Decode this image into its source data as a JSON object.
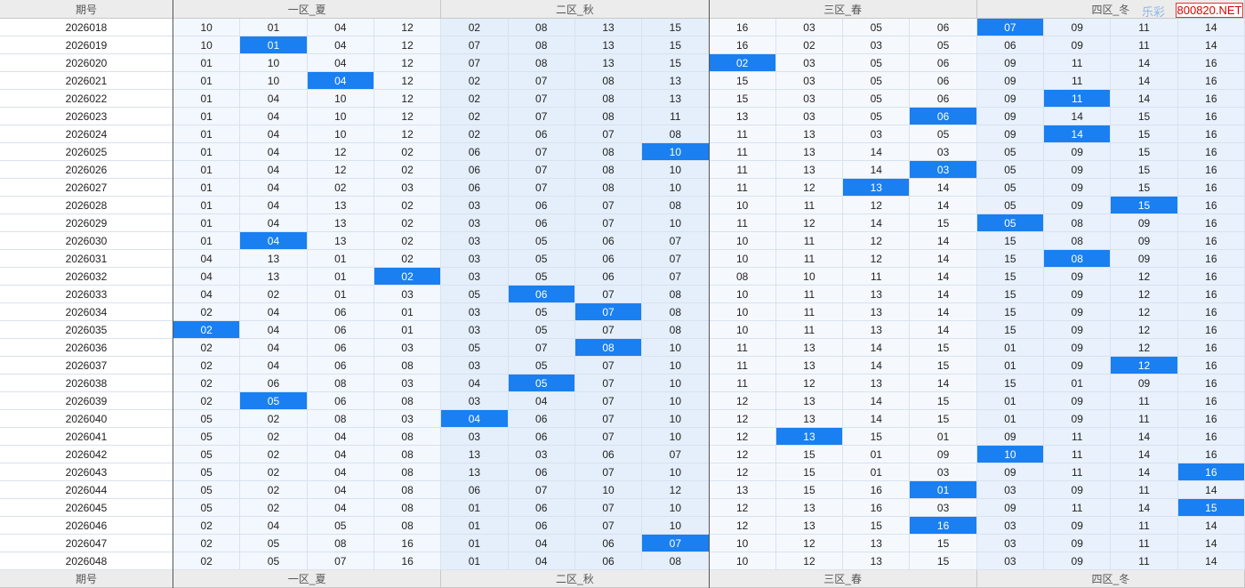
{
  "header": [
    "期号",
    "一区_夏",
    "二区_秋",
    "三区_春",
    "四区_冬"
  ],
  "footer": [
    "期号",
    "一区_夏",
    "二区_秋",
    "三区_春",
    "四区_冬"
  ],
  "watermark": {
    "brand": "乐彩",
    "site": "800820.NET"
  },
  "rows": [
    {
      "period": "2026018",
      "cells": [
        "10",
        "01",
        "04",
        "12",
        "02",
        "08",
        "13",
        "15",
        "16",
        "03",
        "05",
        "06",
        "07",
        "09",
        "11",
        "14"
      ],
      "highlight": 12
    },
    {
      "period": "2026019",
      "cells": [
        "10",
        "01",
        "04",
        "12",
        "07",
        "08",
        "13",
        "15",
        "16",
        "02",
        "03",
        "05",
        "06",
        "09",
        "11",
        "14"
      ],
      "highlight": 1
    },
    {
      "period": "2026020",
      "cells": [
        "01",
        "10",
        "04",
        "12",
        "07",
        "08",
        "13",
        "15",
        "02",
        "03",
        "05",
        "06",
        "09",
        "11",
        "14",
        "16"
      ],
      "highlight": 8
    },
    {
      "period": "2026021",
      "cells": [
        "01",
        "10",
        "04",
        "12",
        "02",
        "07",
        "08",
        "13",
        "15",
        "03",
        "05",
        "06",
        "09",
        "11",
        "14",
        "16"
      ],
      "highlight": 2
    },
    {
      "period": "2026022",
      "cells": [
        "01",
        "04",
        "10",
        "12",
        "02",
        "07",
        "08",
        "13",
        "15",
        "03",
        "05",
        "06",
        "09",
        "11",
        "14",
        "16"
      ],
      "highlight": 13
    },
    {
      "period": "2026023",
      "cells": [
        "01",
        "04",
        "10",
        "12",
        "02",
        "07",
        "08",
        "11",
        "13",
        "03",
        "05",
        "06",
        "09",
        "14",
        "15",
        "16"
      ],
      "highlight": 11
    },
    {
      "period": "2026024",
      "cells": [
        "01",
        "04",
        "10",
        "12",
        "02",
        "06",
        "07",
        "08",
        "11",
        "13",
        "03",
        "05",
        "09",
        "14",
        "15",
        "16"
      ],
      "highlight": 13
    },
    {
      "period": "2026025",
      "cells": [
        "01",
        "04",
        "12",
        "02",
        "06",
        "07",
        "08",
        "10",
        "11",
        "13",
        "14",
        "03",
        "05",
        "09",
        "15",
        "16"
      ],
      "highlight": 7
    },
    {
      "period": "2026026",
      "cells": [
        "01",
        "04",
        "12",
        "02",
        "06",
        "07",
        "08",
        "10",
        "11",
        "13",
        "14",
        "03",
        "05",
        "09",
        "15",
        "16"
      ],
      "highlight": 11
    },
    {
      "period": "2026027",
      "cells": [
        "01",
        "04",
        "02",
        "03",
        "06",
        "07",
        "08",
        "10",
        "11",
        "12",
        "13",
        "14",
        "05",
        "09",
        "15",
        "16"
      ],
      "highlight": 10
    },
    {
      "period": "2026028",
      "cells": [
        "01",
        "04",
        "13",
        "02",
        "03",
        "06",
        "07",
        "08",
        "10",
        "11",
        "12",
        "14",
        "05",
        "09",
        "15",
        "16"
      ],
      "highlight": 14
    },
    {
      "period": "2026029",
      "cells": [
        "01",
        "04",
        "13",
        "02",
        "03",
        "06",
        "07",
        "10",
        "11",
        "12",
        "14",
        "15",
        "05",
        "08",
        "09",
        "16"
      ],
      "highlight": 12
    },
    {
      "period": "2026030",
      "cells": [
        "01",
        "04",
        "13",
        "02",
        "03",
        "05",
        "06",
        "07",
        "10",
        "11",
        "12",
        "14",
        "15",
        "08",
        "09",
        "16"
      ],
      "highlight": 1
    },
    {
      "period": "2026031",
      "cells": [
        "04",
        "13",
        "01",
        "02",
        "03",
        "05",
        "06",
        "07",
        "10",
        "11",
        "12",
        "14",
        "15",
        "08",
        "09",
        "16"
      ],
      "highlight": 13
    },
    {
      "period": "2026032",
      "cells": [
        "04",
        "13",
        "01",
        "02",
        "03",
        "05",
        "06",
        "07",
        "08",
        "10",
        "11",
        "14",
        "15",
        "09",
        "12",
        "16"
      ],
      "highlight": 3
    },
    {
      "period": "2026033",
      "cells": [
        "04",
        "02",
        "01",
        "03",
        "05",
        "06",
        "07",
        "08",
        "10",
        "11",
        "13",
        "14",
        "15",
        "09",
        "12",
        "16"
      ],
      "highlight": 5
    },
    {
      "period": "2026034",
      "cells": [
        "02",
        "04",
        "06",
        "01",
        "03",
        "05",
        "07",
        "08",
        "10",
        "11",
        "13",
        "14",
        "15",
        "09",
        "12",
        "16"
      ],
      "highlight": 6
    },
    {
      "period": "2026035",
      "cells": [
        "02",
        "04",
        "06",
        "01",
        "03",
        "05",
        "07",
        "08",
        "10",
        "11",
        "13",
        "14",
        "15",
        "09",
        "12",
        "16"
      ],
      "highlight": 0
    },
    {
      "period": "2026036",
      "cells": [
        "02",
        "04",
        "06",
        "03",
        "05",
        "07",
        "08",
        "10",
        "11",
        "13",
        "14",
        "15",
        "01",
        "09",
        "12",
        "16"
      ],
      "highlight": 6
    },
    {
      "period": "2026037",
      "cells": [
        "02",
        "04",
        "06",
        "08",
        "03",
        "05",
        "07",
        "10",
        "11",
        "13",
        "14",
        "15",
        "01",
        "09",
        "12",
        "16"
      ],
      "highlight": 14
    },
    {
      "period": "2026038",
      "cells": [
        "02",
        "06",
        "08",
        "03",
        "04",
        "05",
        "07",
        "10",
        "11",
        "12",
        "13",
        "14",
        "15",
        "01",
        "09",
        "16"
      ],
      "highlight": 5
    },
    {
      "period": "2026039",
      "cells": [
        "02",
        "05",
        "06",
        "08",
        "03",
        "04",
        "07",
        "10",
        "12",
        "13",
        "14",
        "15",
        "01",
        "09",
        "11",
        "16"
      ],
      "highlight": 1
    },
    {
      "period": "2026040",
      "cells": [
        "05",
        "02",
        "08",
        "03",
        "04",
        "06",
        "07",
        "10",
        "12",
        "13",
        "14",
        "15",
        "01",
        "09",
        "11",
        "16"
      ],
      "highlight": 4
    },
    {
      "period": "2026041",
      "cells": [
        "05",
        "02",
        "04",
        "08",
        "03",
        "06",
        "07",
        "10",
        "12",
        "13",
        "15",
        "01",
        "09",
        "11",
        "14",
        "16"
      ],
      "highlight": 9
    },
    {
      "period": "2026042",
      "cells": [
        "05",
        "02",
        "04",
        "08",
        "13",
        "03",
        "06",
        "07",
        "12",
        "15",
        "01",
        "09",
        "10",
        "11",
        "14",
        "16"
      ],
      "highlight": 12
    },
    {
      "period": "2026043",
      "cells": [
        "05",
        "02",
        "04",
        "08",
        "13",
        "06",
        "07",
        "10",
        "12",
        "15",
        "01",
        "03",
        "09",
        "11",
        "14",
        "16"
      ],
      "highlight": 15
    },
    {
      "period": "2026044",
      "cells": [
        "05",
        "02",
        "04",
        "08",
        "06",
        "07",
        "10",
        "12",
        "13",
        "15",
        "16",
        "01",
        "03",
        "09",
        "11",
        "14"
      ],
      "highlight": 11
    },
    {
      "period": "2026045",
      "cells": [
        "05",
        "02",
        "04",
        "08",
        "01",
        "06",
        "07",
        "10",
        "12",
        "13",
        "16",
        "03",
        "09",
        "11",
        "14",
        "15"
      ],
      "highlight": 15
    },
    {
      "period": "2026046",
      "cells": [
        "02",
        "04",
        "05",
        "08",
        "01",
        "06",
        "07",
        "10",
        "12",
        "13",
        "15",
        "16",
        "03",
        "09",
        "11",
        "14"
      ],
      "highlight": 11
    },
    {
      "period": "2026047",
      "cells": [
        "02",
        "05",
        "08",
        "16",
        "01",
        "04",
        "06",
        "07",
        "10",
        "12",
        "13",
        "15",
        "03",
        "09",
        "11",
        "14"
      ],
      "highlight": 7
    },
    {
      "period": "2026048",
      "cells": [
        "02",
        "05",
        "07",
        "16",
        "01",
        "04",
        "06",
        "08",
        "10",
        "12",
        "13",
        "15",
        "03",
        "09",
        "11",
        "14"
      ],
      "highlight": null
    }
  ]
}
